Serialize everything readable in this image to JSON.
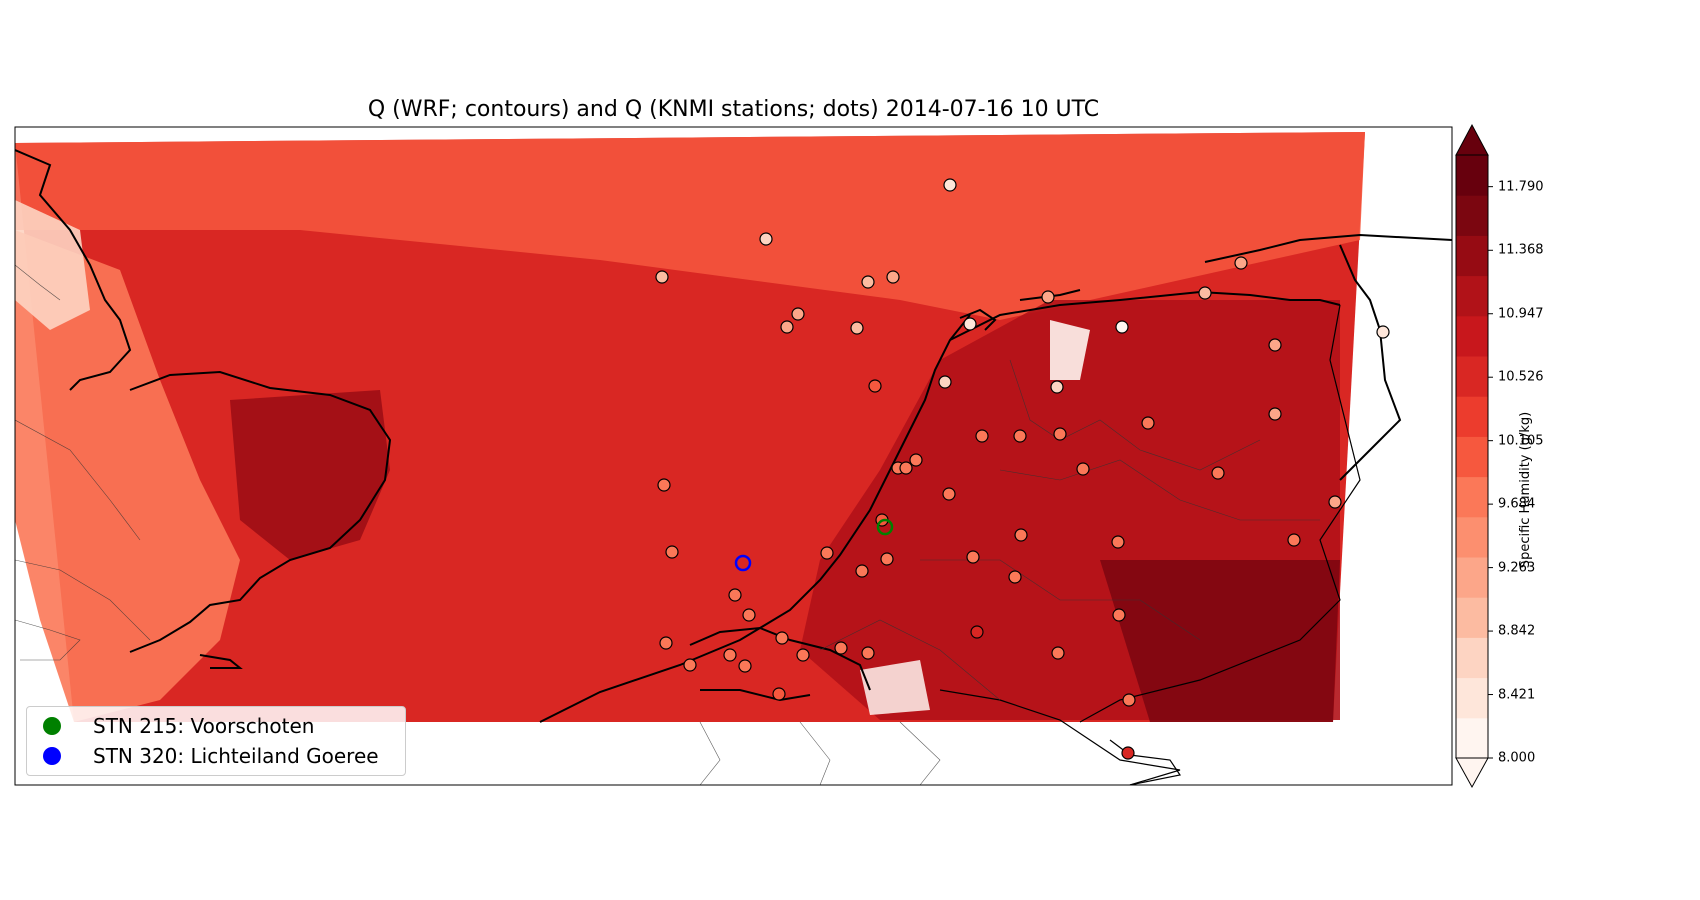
{
  "title": "Q (WRF; contours) and Q (KNMI stations; dots) 2014-07-16 10 UTC",
  "colorbar": {
    "label": "Specific Humidity (g/kg)",
    "ticks": [
      "11.790",
      "11.368",
      "10.947",
      "10.526",
      "10.105",
      "9.684",
      "9.263",
      "8.842",
      "8.421",
      "8.000"
    ],
    "range": [
      8.0,
      12.0
    ],
    "colors": [
      "#fff5f0",
      "#fee6da",
      "#fdd4c2",
      "#fcbba1",
      "#fca689",
      "#fc8f6f",
      "#fb7858",
      "#f6583e",
      "#ec3c2d",
      "#d92723",
      "#c8171c",
      "#b11218",
      "#960b13",
      "#7b0610",
      "#67000d"
    ]
  },
  "legend": [
    {
      "label": "STN 215: Voorschoten",
      "color": "#008000"
    },
    {
      "label": "STN 320: Lichteiland Goeree",
      "color": "#0000ff"
    }
  ]
}
